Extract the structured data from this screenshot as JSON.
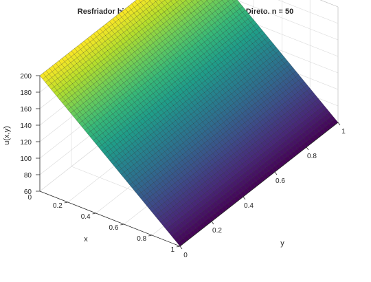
{
  "chart_data": {
    "type": "surface",
    "title": "Resfriador bidimensional. Contorno 2. Metodo Direto. n = 50",
    "xlabel": "x",
    "ylabel": "y",
    "zlabel": "u(x,y)",
    "xlim": [
      0,
      1
    ],
    "ylim": [
      0,
      1
    ],
    "zlim": [
      60,
      200
    ],
    "x_ticks": [
      "0.2",
      "0.4",
      "0.6",
      "0.8",
      "1"
    ],
    "y_ticks": [
      "0",
      "0.2",
      "0.4",
      "0.6",
      "0.8",
      "1"
    ],
    "z_ticks": [
      "0",
      "60",
      "80",
      "100",
      "120",
      "140",
      "160",
      "180",
      "200"
    ],
    "grid": true,
    "colormap": "viridis",
    "n": 50,
    "surface": {
      "corner_values": {
        "x0_y0": 200,
        "x0_y1": 200,
        "x1_y0": 60,
        "x1_y1": 60
      },
      "description": "temperature decreases nearly linearly from 200 at x=0 to 60 at x=1, constant along y"
    }
  }
}
